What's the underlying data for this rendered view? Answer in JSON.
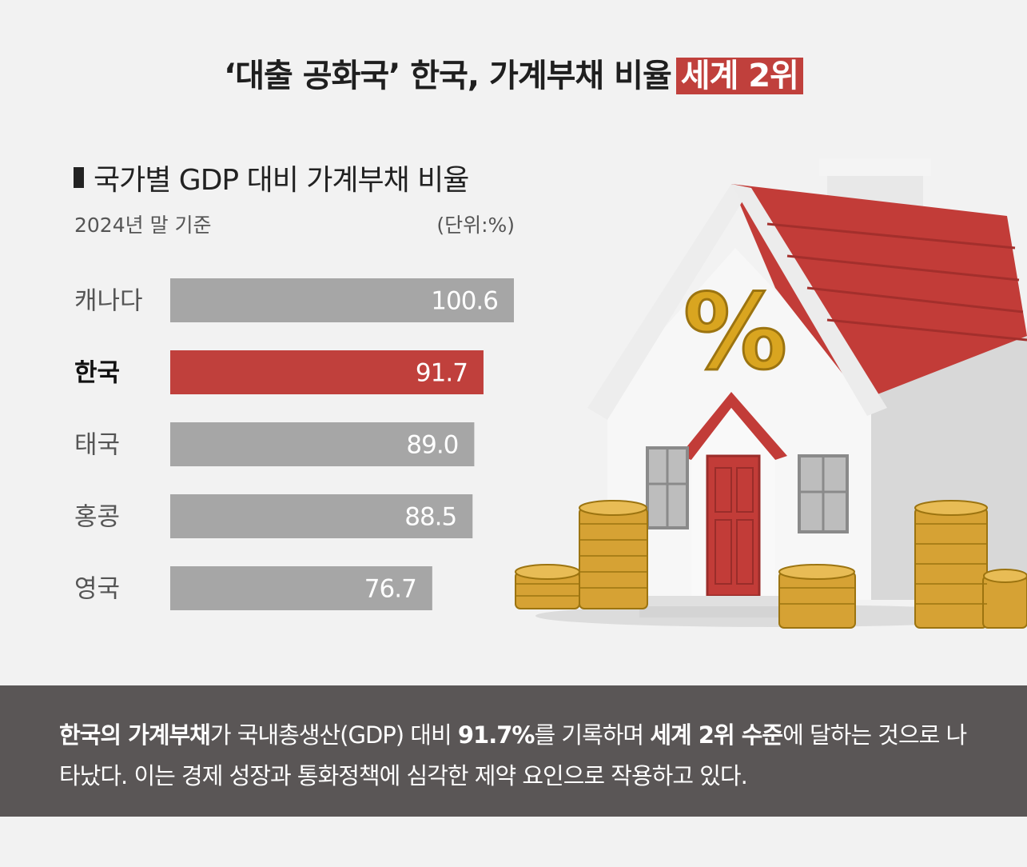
{
  "headline": {
    "main": "‘대출 공화국’ 한국, 가계부채 비율",
    "highlight": "세계 2위"
  },
  "chart_data": {
    "type": "bar",
    "orientation": "horizontal",
    "title": "국가별 GDP 대비 가계부채 비율",
    "subtitle": "2024년 말 기준",
    "unit": "(단위:%)",
    "categories": [
      "캐나다",
      "한국",
      "태국",
      "홍콩",
      "영국"
    ],
    "values": [
      100.6,
      91.7,
      89.0,
      88.5,
      76.7
    ],
    "value_labels": [
      "100.6",
      "91.7",
      "89.0",
      "88.5",
      "76.7"
    ],
    "highlight_category": "한국",
    "colors": {
      "default": "#a6a6a6",
      "highlight": "#c0403c"
    },
    "xlim": [
      0,
      100.6
    ]
  },
  "illustration": {
    "house_icon": "house-with-percent-icon",
    "percent_sign": "%"
  },
  "footer": {
    "parts": [
      {
        "text": "한국의 가계부채",
        "bold": true
      },
      {
        "text": "가 국내총생산(GDP) 대비 ",
        "bold": false
      },
      {
        "text": "91.7%",
        "bold": true
      },
      {
        "text": "를 기록하며 ",
        "bold": false
      },
      {
        "text": "세계 2위 수준",
        "bold": true
      },
      {
        "text": "에 달하는 것으로 나타났다. 이는 경제 성장과 통화정책에 심각한 제약 요인으로 작용하고 있다.",
        "bold": false
      }
    ]
  }
}
